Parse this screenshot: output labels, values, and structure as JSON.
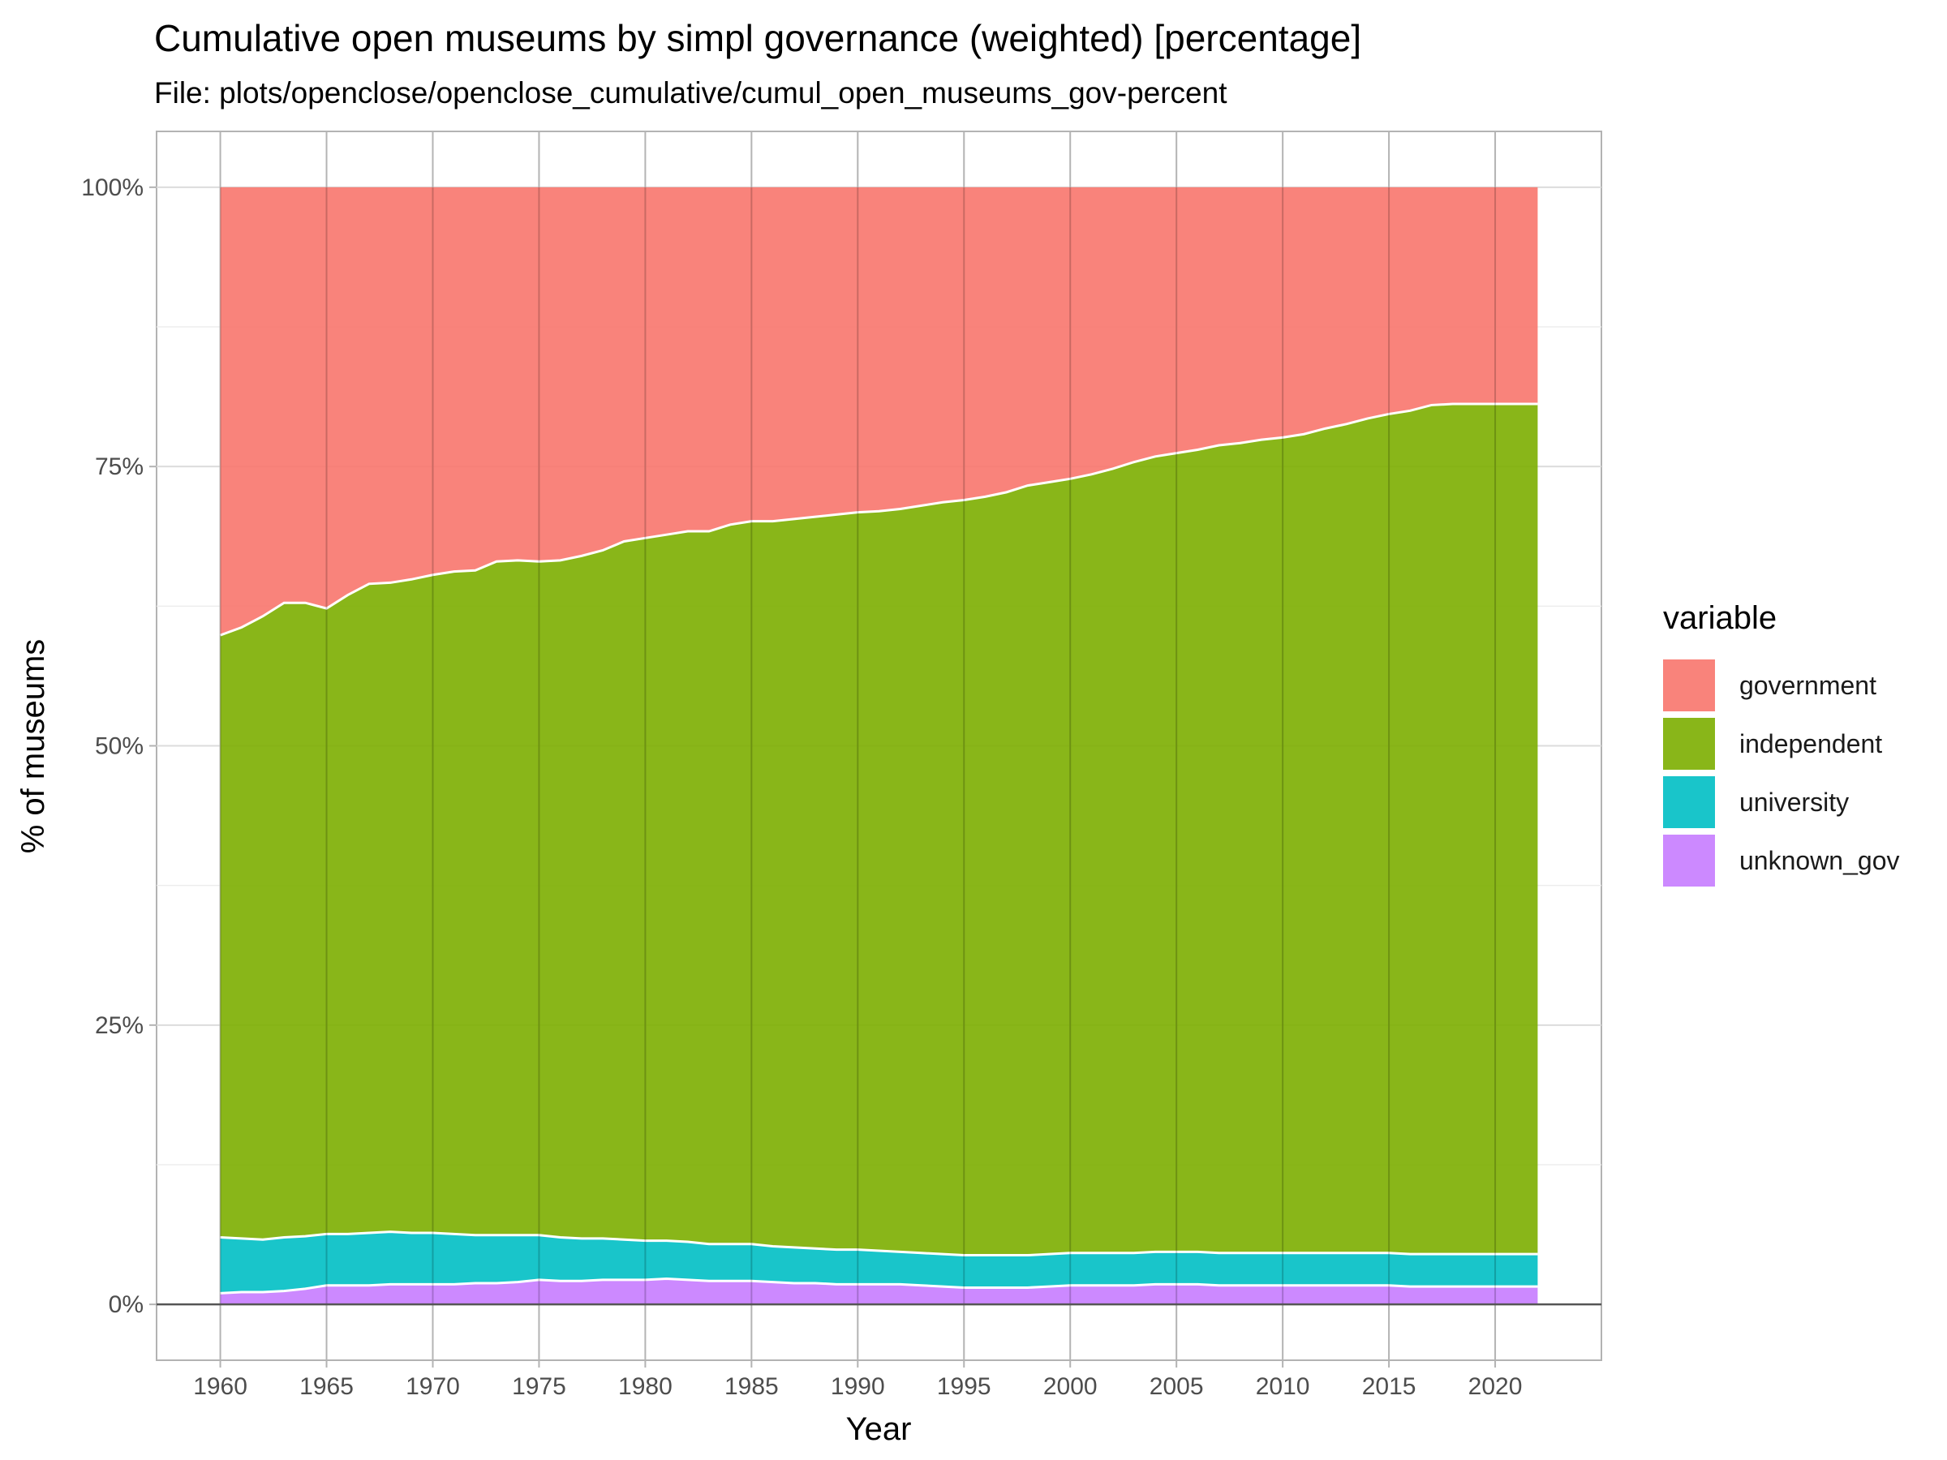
{
  "title": "Cumulative open museums by simpl governance (weighted) [percentage]",
  "subtitle": "File: plots/openclose/openclose_cumulative/cumul_open_museums_gov-percent",
  "chart_data": {
    "type": "area",
    "stacked": true,
    "xlabel": "Year",
    "ylabel": "% of museums",
    "xlim": [
      1957,
      2025
    ],
    "ylim": [
      -5,
      105
    ],
    "x_ticks": [
      "1960",
      "1965",
      "1970",
      "1975",
      "1980",
      "1985",
      "1990",
      "1995",
      "2000",
      "2005",
      "2010",
      "2015",
      "2020"
    ],
    "y_ticks": [
      "0%",
      "25%",
      "50%",
      "75%",
      "100%"
    ],
    "grid": true,
    "legend_title": "variable",
    "legend_position": "right",
    "x": [
      1960,
      1961,
      1962,
      1963,
      1964,
      1965,
      1966,
      1967,
      1968,
      1969,
      1970,
      1971,
      1972,
      1973,
      1974,
      1975,
      1976,
      1977,
      1978,
      1979,
      1980,
      1981,
      1982,
      1983,
      1984,
      1985,
      1986,
      1987,
      1988,
      1989,
      1990,
      1991,
      1992,
      1993,
      1994,
      1995,
      1996,
      1997,
      1998,
      1999,
      2000,
      2001,
      2002,
      2003,
      2004,
      2005,
      2006,
      2007,
      2008,
      2009,
      2010,
      2011,
      2012,
      2013,
      2014,
      2015,
      2016,
      2017,
      2018,
      2019,
      2020,
      2021,
      2022
    ],
    "series": [
      {
        "name": "unknown_gov",
        "color": "#C77CFF",
        "values": [
          1.0,
          1.1,
          1.1,
          1.2,
          1.4,
          1.7,
          1.7,
          1.7,
          1.8,
          1.8,
          1.8,
          1.8,
          1.9,
          1.9,
          2.0,
          2.2,
          2.1,
          2.1,
          2.2,
          2.2,
          2.2,
          2.3,
          2.2,
          2.1,
          2.1,
          2.1,
          2.0,
          1.9,
          1.9,
          1.8,
          1.8,
          1.8,
          1.8,
          1.7,
          1.6,
          1.5,
          1.5,
          1.5,
          1.5,
          1.6,
          1.7,
          1.7,
          1.7,
          1.7,
          1.8,
          1.8,
          1.8,
          1.7,
          1.7,
          1.7,
          1.7,
          1.7,
          1.7,
          1.7,
          1.7,
          1.7,
          1.6,
          1.6,
          1.6,
          1.6,
          1.6,
          1.6,
          1.6
        ]
      },
      {
        "name": "university",
        "color": "#00BFC4",
        "values": [
          5.0,
          4.8,
          4.7,
          4.8,
          4.7,
          4.6,
          4.6,
          4.7,
          4.7,
          4.6,
          4.6,
          4.5,
          4.3,
          4.3,
          4.2,
          4.0,
          3.9,
          3.8,
          3.7,
          3.6,
          3.5,
          3.4,
          3.4,
          3.3,
          3.3,
          3.3,
          3.2,
          3.2,
          3.1,
          3.1,
          3.1,
          3.0,
          2.9,
          2.9,
          2.9,
          2.9,
          2.9,
          2.9,
          2.9,
          2.9,
          2.9,
          2.9,
          2.9,
          2.9,
          2.9,
          2.9,
          2.9,
          2.9,
          2.9,
          2.9,
          2.9,
          2.9,
          2.9,
          2.9,
          2.9,
          2.9,
          2.9,
          2.9,
          2.9,
          2.9,
          2.9,
          2.9,
          2.9
        ]
      },
      {
        "name": "independent",
        "color": "#7CAE00",
        "values": [
          53.9,
          54.7,
          55.8,
          56.8,
          56.7,
          56.0,
          57.2,
          58.1,
          58.1,
          58.5,
          58.9,
          59.3,
          59.5,
          60.3,
          60.4,
          60.3,
          60.6,
          61.1,
          61.6,
          62.5,
          62.9,
          63.2,
          63.6,
          63.8,
          64.4,
          64.7,
          64.9,
          65.2,
          65.5,
          65.8,
          66.0,
          66.2,
          66.5,
          66.9,
          67.3,
          67.6,
          67.9,
          68.3,
          68.9,
          69.1,
          69.3,
          69.7,
          70.2,
          70.8,
          71.2,
          71.5,
          71.8,
          72.3,
          72.5,
          72.8,
          73.0,
          73.3,
          73.8,
          74.2,
          74.7,
          75.1,
          75.5,
          76.0,
          76.1,
          76.1,
          76.1,
          76.1,
          76.1
        ]
      },
      {
        "name": "government",
        "color": "#F8766D",
        "values": [
          40.1,
          39.4,
          38.4,
          37.2,
          37.2,
          37.7,
          36.5,
          35.5,
          35.4,
          35.1,
          34.7,
          34.4,
          34.3,
          33.5,
          33.4,
          33.5,
          33.4,
          33.0,
          32.5,
          31.7,
          31.4,
          31.1,
          30.8,
          30.8,
          30.2,
          29.9,
          29.9,
          29.7,
          29.5,
          29.3,
          29.1,
          29.0,
          28.8,
          28.5,
          28.2,
          28.0,
          27.7,
          27.3,
          26.7,
          26.4,
          26.1,
          25.7,
          25.2,
          24.6,
          24.1,
          23.8,
          23.5,
          23.1,
          22.9,
          22.6,
          22.4,
          22.1,
          21.6,
          21.2,
          20.7,
          20.3,
          20.0,
          19.5,
          19.4,
          19.4,
          19.4,
          19.4,
          19.4
        ]
      }
    ]
  }
}
